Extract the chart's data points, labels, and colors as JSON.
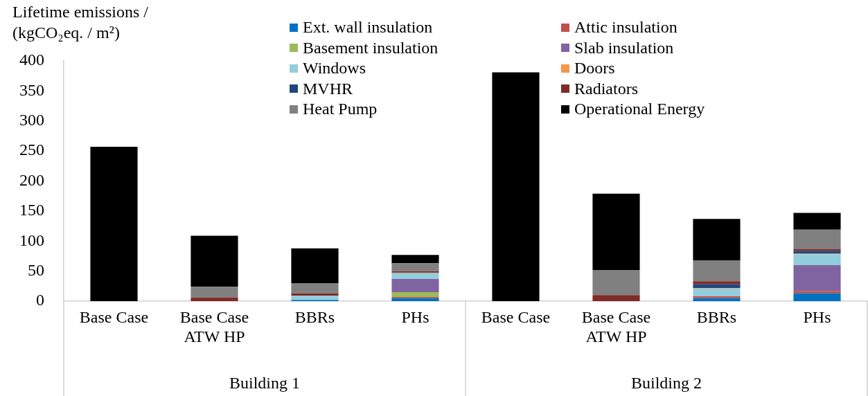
{
  "chart_data": {
    "type": "bar",
    "stacked": true,
    "ylabel": "Lifetime emissions / (kgCO₂eq. / m²)",
    "categories": [
      "Base Case",
      "Base Case ATW HP",
      "BBRs",
      "PHs",
      "Base Case",
      "Base Case ATW HP",
      "BBRs",
      "PHs"
    ],
    "annotations": [
      "Building 1",
      "Building 2"
    ],
    "ylim": [
      0,
      400
    ],
    "yticks": [
      0,
      50,
      100,
      150,
      200,
      250,
      300,
      350,
      400
    ],
    "grid": false,
    "legend": "top",
    "series": [
      {
        "name": "Ext. wall insulation",
        "color": "#0070c0",
        "values": [
          0,
          0,
          2,
          5,
          0,
          0,
          5,
          13
        ]
      },
      {
        "name": "Attic insulation",
        "color": "#c0504d",
        "values": [
          0,
          0,
          0,
          2,
          0,
          0,
          3,
          4
        ]
      },
      {
        "name": "Basement insulation",
        "color": "#9bbb59",
        "values": [
          0,
          0,
          0,
          8,
          0,
          0,
          0,
          0
        ]
      },
      {
        "name": "Slab insulation",
        "color": "#8064a2",
        "values": [
          0,
          0,
          0,
          22,
          0,
          0,
          0,
          43
        ]
      },
      {
        "name": "Windows",
        "color": "#92cddc",
        "values": [
          0,
          0,
          7,
          9,
          0,
          0,
          13,
          18
        ]
      },
      {
        "name": "Doors",
        "color": "#f79646",
        "values": [
          0,
          0,
          0,
          1,
          0,
          0,
          1,
          1
        ]
      },
      {
        "name": "MVHR",
        "color": "#1f497d",
        "values": [
          0,
          0,
          0,
          1,
          0,
          0,
          6,
          5
        ]
      },
      {
        "name": "Radiators",
        "color": "#7f2b28",
        "values": [
          0,
          6,
          4,
          2,
          0,
          10,
          5,
          3
        ]
      },
      {
        "name": "Heat Pump",
        "color": "#808080",
        "values": [
          0,
          18,
          17,
          13,
          0,
          42,
          35,
          32
        ]
      },
      {
        "name": "Operational Energy",
        "color": "#000000",
        "values": [
          257,
          85,
          58,
          14,
          381,
          127,
          69,
          28
        ]
      }
    ]
  }
}
